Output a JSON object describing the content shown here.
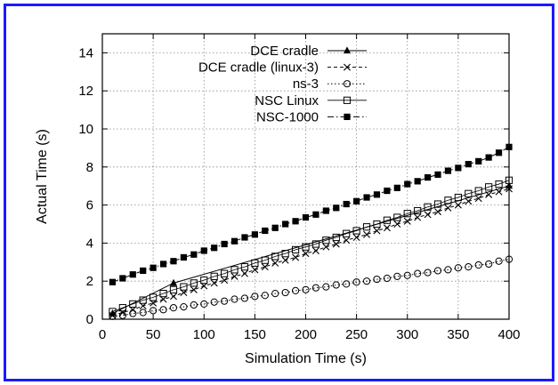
{
  "chart_data": {
    "type": "line",
    "title": "",
    "xlabel": "Simulation Time (s)",
    "ylabel": "Actual Time (s)",
    "xlim": [
      0,
      400
    ],
    "ylim": [
      0,
      15
    ],
    "xticks": [
      0,
      50,
      100,
      150,
      200,
      250,
      300,
      350,
      400
    ],
    "yticks": [
      0,
      2,
      4,
      6,
      8,
      10,
      12,
      14
    ],
    "grid": true,
    "legend_position": "top-left",
    "colors": {
      "frame": "#1a1aff",
      "ink": "#000000",
      "grid": "#8c8c8c"
    },
    "series": [
      {
        "name": "DCE cradle",
        "marker": "triangle-filled",
        "line": "solid",
        "x": [
          10,
          70,
          400
        ],
        "y": [
          0.3,
          1.9,
          7.0
        ]
      },
      {
        "name": "DCE cradle (linux-3)",
        "marker": "x",
        "line": "dashed",
        "x": [
          10,
          20,
          30,
          40,
          50,
          60,
          70,
          80,
          90,
          100,
          110,
          120,
          130,
          140,
          150,
          160,
          170,
          180,
          190,
          200,
          210,
          220,
          230,
          240,
          250,
          260,
          270,
          280,
          290,
          300,
          310,
          320,
          330,
          340,
          350,
          360,
          370,
          380,
          390,
          400
        ],
        "y": [
          0.2,
          0.35,
          0.5,
          0.7,
          0.85,
          1.05,
          1.2,
          1.4,
          1.55,
          1.75,
          1.9,
          2.05,
          2.25,
          2.4,
          2.6,
          2.75,
          2.95,
          3.1,
          3.25,
          3.45,
          3.6,
          3.8,
          3.95,
          4.15,
          4.3,
          4.45,
          4.65,
          4.8,
          5.0,
          5.15,
          5.35,
          5.5,
          5.65,
          5.85,
          6.0,
          6.2,
          6.35,
          6.55,
          6.7,
          6.85
        ]
      },
      {
        "name": "ns-3",
        "marker": "circle-open",
        "line": "dotted",
        "x": [
          10,
          20,
          30,
          40,
          50,
          60,
          70,
          80,
          90,
          100,
          110,
          120,
          130,
          140,
          150,
          160,
          170,
          180,
          190,
          200,
          210,
          220,
          230,
          240,
          250,
          260,
          270,
          280,
          290,
          300,
          310,
          320,
          330,
          340,
          350,
          360,
          370,
          380,
          390,
          400
        ],
        "y": [
          0.15,
          0.2,
          0.3,
          0.35,
          0.45,
          0.5,
          0.6,
          0.65,
          0.75,
          0.8,
          0.9,
          0.95,
          1.05,
          1.1,
          1.2,
          1.25,
          1.35,
          1.4,
          1.5,
          1.55,
          1.65,
          1.7,
          1.8,
          1.85,
          1.95,
          2.0,
          2.1,
          2.15,
          2.25,
          2.3,
          2.4,
          2.45,
          2.55,
          2.6,
          2.7,
          2.75,
          2.85,
          2.9,
          3.05,
          3.15
        ]
      },
      {
        "name": "NSC Linux",
        "marker": "square-open",
        "line": "solid-thin",
        "x": [
          10,
          20,
          30,
          40,
          50,
          60,
          70,
          80,
          90,
          100,
          110,
          120,
          130,
          140,
          150,
          160,
          170,
          180,
          190,
          200,
          210,
          220,
          230,
          240,
          250,
          260,
          270,
          280,
          290,
          300,
          310,
          320,
          330,
          340,
          350,
          360,
          370,
          380,
          390,
          400
        ],
        "y": [
          0.4,
          0.6,
          0.8,
          1.0,
          1.15,
          1.35,
          1.55,
          1.7,
          1.9,
          2.05,
          2.25,
          2.4,
          2.6,
          2.75,
          2.95,
          3.1,
          3.3,
          3.45,
          3.65,
          3.8,
          3.95,
          4.15,
          4.3,
          4.5,
          4.65,
          4.85,
          5.0,
          5.2,
          5.35,
          5.55,
          5.7,
          5.9,
          6.05,
          6.25,
          6.4,
          6.6,
          6.75,
          6.95,
          7.1,
          7.3
        ]
      },
      {
        "name": "NSC-1000",
        "marker": "square-filled",
        "line": "dash-dot",
        "x": [
          10,
          20,
          30,
          40,
          50,
          60,
          70,
          80,
          90,
          100,
          110,
          120,
          130,
          140,
          150,
          160,
          170,
          180,
          190,
          200,
          210,
          220,
          230,
          240,
          250,
          260,
          270,
          280,
          290,
          300,
          310,
          320,
          330,
          340,
          350,
          360,
          370,
          380,
          390,
          400
        ],
        "y": [
          1.95,
          2.15,
          2.35,
          2.55,
          2.7,
          2.9,
          3.05,
          3.25,
          3.4,
          3.6,
          3.75,
          3.95,
          4.1,
          4.3,
          4.45,
          4.65,
          4.8,
          5.0,
          5.15,
          5.35,
          5.5,
          5.7,
          5.85,
          6.05,
          6.2,
          6.4,
          6.55,
          6.75,
          6.9,
          7.1,
          7.25,
          7.45,
          7.6,
          7.8,
          7.95,
          8.15,
          8.3,
          8.5,
          8.75,
          9.05
        ]
      }
    ]
  }
}
